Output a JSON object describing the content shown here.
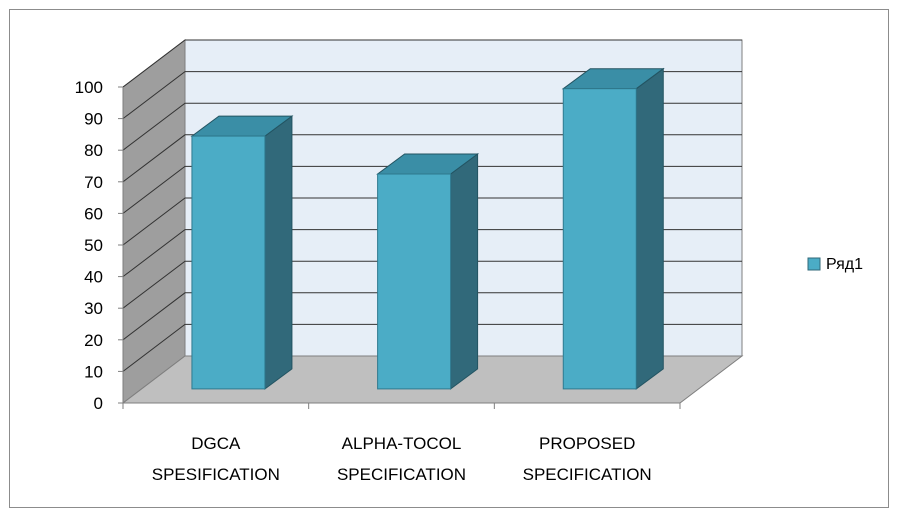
{
  "chart_data": {
    "type": "bar",
    "subtype": "3d-clustered-column",
    "categories": [
      [
        "DGCA",
        "SPESIFICATION"
      ],
      [
        "ALPHA-TOCOL",
        "SPECIFICATION"
      ],
      [
        "PROPOSED",
        "SPECIFICATION"
      ]
    ],
    "series": [
      {
        "name": "Ряд1",
        "values": [
          80,
          68,
          95
        ]
      }
    ],
    "yticks": [
      "0",
      "10",
      "20",
      "30",
      "40",
      "50",
      "60",
      "70",
      "80",
      "90",
      "100"
    ],
    "ylim": [
      0,
      100
    ],
    "title": "",
    "xlabel": "",
    "ylabel": "",
    "grid": true,
    "legend_position": "right",
    "colors": {
      "bar_front": "#4bacc6",
      "bar_side": "#31697a",
      "bar_top": "#3a8ea6",
      "back_wall": "#e6eef7",
      "side_wall": "#9e9e9e",
      "floor": "#bfbfbf",
      "gridline": "#333333"
    }
  }
}
